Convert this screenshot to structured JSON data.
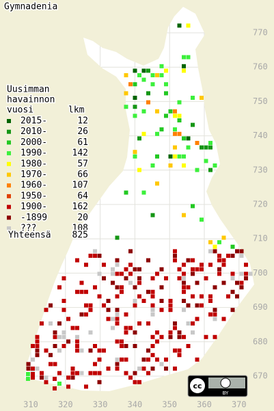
{
  "title": "Gymnadenia",
  "legend": {
    "heading": [
      "Uusimman",
      "havainnon",
      "vuosi"
    ],
    "count_heading": "lkm",
    "rows": [
      {
        "label": "2015-",
        "count": 12,
        "color": "#006400"
      },
      {
        "label": "2010-",
        "count": 26,
        "color": "#159615"
      },
      {
        "label": "2000-",
        "count": 61,
        "color": "#22c822"
      },
      {
        "label": "1990-",
        "count": 142,
        "color": "#3cf03c"
      },
      {
        "label": "1980-",
        "count": 57,
        "color": "#ffff00"
      },
      {
        "label": "1970-",
        "count": 66,
        "color": "#ffc800"
      },
      {
        "label": "1960-",
        "count": 107,
        "color": "#ff8000"
      },
      {
        "label": "1950-",
        "count": 64,
        "color": "#e04000"
      },
      {
        "label": "1900-",
        "count": 162,
        "color": "#c00000"
      },
      {
        "label": "-1899",
        "count": 20,
        "color": "#8c0000"
      },
      {
        "label": "???",
        "count": 108,
        "color": "#c8c8c8"
      }
    ],
    "total_label": "Yhteensä",
    "total": 825
  },
  "x_ticks": [
    310,
    320,
    330,
    340,
    350,
    360,
    370
  ],
  "y_ticks": [
    770,
    760,
    750,
    740,
    730,
    720,
    710,
    700,
    690,
    680,
    670
  ],
  "license": {
    "cc": "cc",
    "by": "BY"
  }
}
